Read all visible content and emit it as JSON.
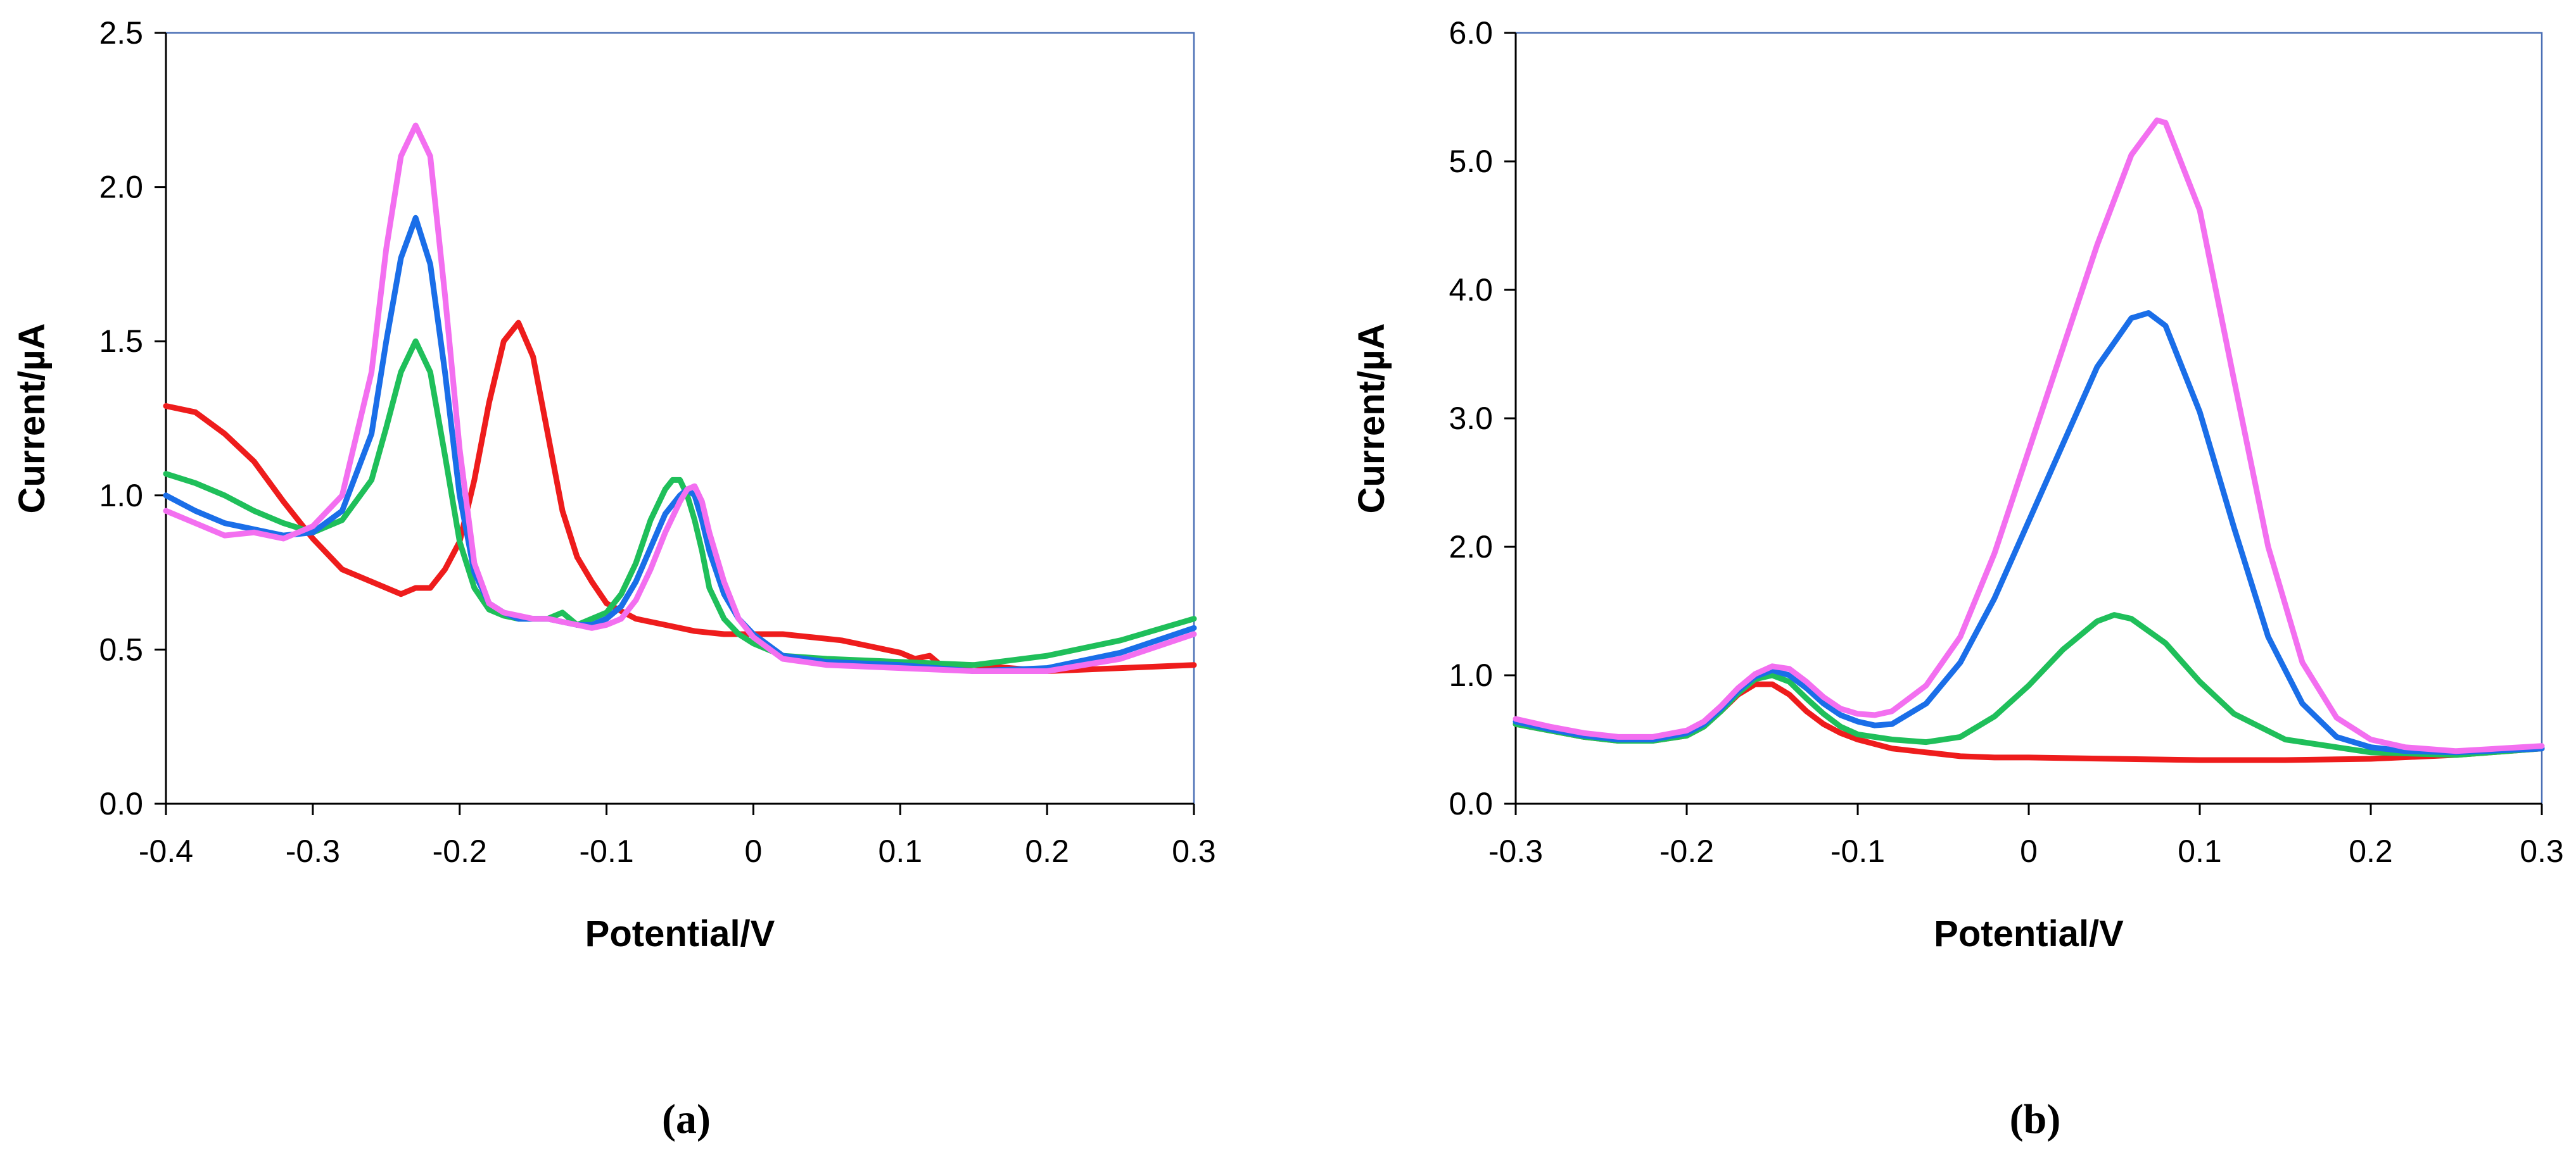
{
  "chart_data": [
    {
      "type": "line",
      "caption": "(a)",
      "xlabel": "Potential/V",
      "ylabel": "Current/µA",
      "xlim": [
        -0.4,
        0.3
      ],
      "ylim": [
        0,
        2.5
      ],
      "xticks": [
        -0.4,
        -0.3,
        -0.2,
        -0.1,
        0,
        0.1,
        0.2,
        0.3
      ],
      "xtick_labels": [
        "-0.4",
        "-0.3",
        "-0.2",
        "-0.1",
        "0",
        "0.1",
        "0.2",
        "0.3"
      ],
      "yticks": [
        0,
        0.5,
        1.0,
        1.5,
        2.0,
        2.5
      ],
      "ytick_labels": [
        "0.0",
        "0.5",
        "1.0",
        "1.5",
        "2.0",
        "2.5"
      ],
      "grid": false,
      "legend": "none",
      "series": [
        {
          "name": "red",
          "color": "#ee1c1c",
          "x": [
            -0.4,
            -0.38,
            -0.36,
            -0.34,
            -0.32,
            -0.3,
            -0.28,
            -0.26,
            -0.24,
            -0.23,
            -0.22,
            -0.21,
            -0.2,
            -0.19,
            -0.18,
            -0.17,
            -0.16,
            -0.15,
            -0.14,
            -0.13,
            -0.12,
            -0.11,
            -0.1,
            -0.08,
            -0.06,
            -0.04,
            -0.02,
            0,
            0.02,
            0.04,
            0.06,
            0.08,
            0.1,
            0.11,
            0.12,
            0.13,
            0.15,
            0.2,
            0.25,
            0.3
          ],
          "y": [
            1.29,
            1.27,
            1.2,
            1.11,
            0.98,
            0.86,
            0.76,
            0.72,
            0.68,
            0.7,
            0.7,
            0.76,
            0.85,
            1.05,
            1.3,
            1.5,
            1.56,
            1.45,
            1.2,
            0.95,
            0.8,
            0.72,
            0.65,
            0.6,
            0.58,
            0.56,
            0.55,
            0.55,
            0.55,
            0.54,
            0.53,
            0.51,
            0.49,
            0.47,
            0.48,
            0.44,
            0.45,
            0.43,
            0.44,
            0.45
          ]
        },
        {
          "name": "green",
          "color": "#1fbf5a",
          "x": [
            -0.4,
            -0.38,
            -0.36,
            -0.34,
            -0.32,
            -0.3,
            -0.28,
            -0.26,
            -0.25,
            -0.24,
            -0.23,
            -0.22,
            -0.21,
            -0.2,
            -0.19,
            -0.18,
            -0.17,
            -0.16,
            -0.15,
            -0.14,
            -0.13,
            -0.12,
            -0.11,
            -0.1,
            -0.09,
            -0.08,
            -0.07,
            -0.06,
            -0.055,
            -0.05,
            -0.045,
            -0.04,
            -0.035,
            -0.03,
            -0.02,
            -0.01,
            0,
            0.02,
            0.05,
            0.1,
            0.15,
            0.2,
            0.25,
            0.3
          ],
          "y": [
            1.07,
            1.04,
            1.0,
            0.95,
            0.91,
            0.88,
            0.92,
            1.05,
            1.22,
            1.4,
            1.5,
            1.4,
            1.13,
            0.85,
            0.7,
            0.63,
            0.61,
            0.6,
            0.6,
            0.6,
            0.62,
            0.58,
            0.6,
            0.62,
            0.68,
            0.78,
            0.92,
            1.02,
            1.05,
            1.05,
            1.0,
            0.92,
            0.82,
            0.7,
            0.6,
            0.55,
            0.52,
            0.48,
            0.47,
            0.46,
            0.45,
            0.48,
            0.53,
            0.6
          ]
        },
        {
          "name": "blue",
          "color": "#1a6ee8",
          "x": [
            -0.4,
            -0.38,
            -0.36,
            -0.34,
            -0.32,
            -0.3,
            -0.28,
            -0.26,
            -0.25,
            -0.24,
            -0.23,
            -0.22,
            -0.21,
            -0.2,
            -0.19,
            -0.18,
            -0.17,
            -0.16,
            -0.15,
            -0.14,
            -0.13,
            -0.12,
            -0.11,
            -0.1,
            -0.09,
            -0.08,
            -0.07,
            -0.06,
            -0.05,
            -0.045,
            -0.04,
            -0.035,
            -0.03,
            -0.02,
            -0.01,
            0,
            0.02,
            0.05,
            0.1,
            0.15,
            0.2,
            0.25,
            0.3
          ],
          "y": [
            1.0,
            0.95,
            0.91,
            0.89,
            0.87,
            0.88,
            0.95,
            1.2,
            1.5,
            1.77,
            1.9,
            1.75,
            1.4,
            1.0,
            0.75,
            0.65,
            0.62,
            0.6,
            0.6,
            0.6,
            0.59,
            0.58,
            0.58,
            0.6,
            0.64,
            0.72,
            0.83,
            0.94,
            1.0,
            1.02,
            1.0,
            0.92,
            0.82,
            0.68,
            0.6,
            0.55,
            0.48,
            0.46,
            0.45,
            0.43,
            0.44,
            0.49,
            0.57
          ]
        },
        {
          "name": "magenta",
          "color": "#f36ff0",
          "x": [
            -0.4,
            -0.38,
            -0.36,
            -0.34,
            -0.32,
            -0.3,
            -0.28,
            -0.26,
            -0.25,
            -0.24,
            -0.23,
            -0.22,
            -0.21,
            -0.2,
            -0.19,
            -0.18,
            -0.17,
            -0.16,
            -0.15,
            -0.14,
            -0.13,
            -0.12,
            -0.11,
            -0.1,
            -0.09,
            -0.08,
            -0.07,
            -0.06,
            -0.05,
            -0.045,
            -0.04,
            -0.035,
            -0.03,
            -0.02,
            -0.01,
            0,
            0.02,
            0.05,
            0.1,
            0.15,
            0.2,
            0.25,
            0.3
          ],
          "y": [
            0.95,
            0.91,
            0.87,
            0.88,
            0.86,
            0.9,
            1.0,
            1.4,
            1.8,
            2.1,
            2.2,
            2.1,
            1.65,
            1.15,
            0.78,
            0.65,
            0.62,
            0.61,
            0.6,
            0.6,
            0.59,
            0.58,
            0.57,
            0.58,
            0.6,
            0.66,
            0.76,
            0.88,
            0.98,
            1.02,
            1.03,
            0.98,
            0.88,
            0.72,
            0.6,
            0.54,
            0.47,
            0.45,
            0.44,
            0.43,
            0.43,
            0.47,
            0.55
          ]
        }
      ]
    },
    {
      "type": "line",
      "caption": "(b)",
      "xlabel": "Potential/V",
      "ylabel": "Current/µA",
      "xlim": [
        -0.3,
        0.3
      ],
      "ylim": [
        0,
        6.0
      ],
      "xticks": [
        -0.3,
        -0.2,
        -0.1,
        0,
        0.1,
        0.2,
        0.3
      ],
      "xtick_labels": [
        "-0.3",
        "-0.2",
        "-0.1",
        "0",
        "0.1",
        "0.2",
        "0.3"
      ],
      "yticks": [
        0,
        1,
        2,
        3,
        4,
        5,
        6
      ],
      "ytick_labels": [
        "0.0",
        "1.0",
        "2.0",
        "3.0",
        "4.0",
        "5.0",
        "6.0"
      ],
      "grid": false,
      "legend": "none",
      "series": [
        {
          "name": "red",
          "color": "#ee1c1c",
          "x": [
            -0.3,
            -0.28,
            -0.26,
            -0.24,
            -0.22,
            -0.2,
            -0.19,
            -0.18,
            -0.17,
            -0.16,
            -0.15,
            -0.14,
            -0.13,
            -0.12,
            -0.11,
            -0.1,
            -0.08,
            -0.06,
            -0.04,
            -0.02,
            0,
            0.05,
            0.1,
            0.15,
            0.2,
            0.25,
            0.3
          ],
          "y": [
            0.62,
            0.57,
            0.52,
            0.49,
            0.49,
            0.53,
            0.6,
            0.72,
            0.85,
            0.93,
            0.93,
            0.85,
            0.72,
            0.62,
            0.55,
            0.5,
            0.43,
            0.4,
            0.37,
            0.36,
            0.36,
            0.35,
            0.34,
            0.34,
            0.35,
            0.38,
            0.43
          ]
        },
        {
          "name": "green",
          "color": "#1fbf5a",
          "x": [
            -0.3,
            -0.28,
            -0.26,
            -0.24,
            -0.22,
            -0.2,
            -0.19,
            -0.18,
            -0.17,
            -0.16,
            -0.15,
            -0.14,
            -0.13,
            -0.12,
            -0.11,
            -0.1,
            -0.08,
            -0.06,
            -0.04,
            -0.02,
            0,
            0.02,
            0.04,
            0.05,
            0.06,
            0.08,
            0.1,
            0.12,
            0.15,
            0.2,
            0.25,
            0.3
          ],
          "y": [
            0.62,
            0.57,
            0.52,
            0.49,
            0.49,
            0.53,
            0.6,
            0.72,
            0.86,
            0.97,
            1.0,
            0.95,
            0.82,
            0.7,
            0.6,
            0.54,
            0.5,
            0.48,
            0.52,
            0.68,
            0.92,
            1.2,
            1.42,
            1.47,
            1.44,
            1.25,
            0.95,
            0.7,
            0.5,
            0.4,
            0.38,
            0.43
          ]
        },
        {
          "name": "blue",
          "color": "#1a6ee8",
          "x": [
            -0.3,
            -0.28,
            -0.26,
            -0.24,
            -0.22,
            -0.2,
            -0.19,
            -0.18,
            -0.17,
            -0.16,
            -0.15,
            -0.14,
            -0.13,
            -0.12,
            -0.11,
            -0.1,
            -0.09,
            -0.08,
            -0.06,
            -0.04,
            -0.02,
            0,
            0.02,
            0.04,
            0.06,
            0.07,
            0.08,
            0.1,
            0.12,
            0.14,
            0.16,
            0.18,
            0.2,
            0.22,
            0.25,
            0.3
          ],
          "y": [
            0.64,
            0.58,
            0.53,
            0.5,
            0.5,
            0.55,
            0.62,
            0.74,
            0.88,
            0.99,
            1.04,
            1.0,
            0.9,
            0.78,
            0.69,
            0.64,
            0.61,
            0.62,
            0.78,
            1.1,
            1.6,
            2.2,
            2.8,
            3.4,
            3.78,
            3.82,
            3.72,
            3.05,
            2.15,
            1.3,
            0.78,
            0.52,
            0.44,
            0.41,
            0.4,
            0.43
          ]
        },
        {
          "name": "magenta",
          "color": "#f36ff0",
          "x": [
            -0.3,
            -0.28,
            -0.26,
            -0.24,
            -0.22,
            -0.2,
            -0.19,
            -0.18,
            -0.17,
            -0.16,
            -0.15,
            -0.14,
            -0.13,
            -0.12,
            -0.11,
            -0.1,
            -0.09,
            -0.08,
            -0.06,
            -0.04,
            -0.02,
            0,
            0.02,
            0.04,
            0.06,
            0.075,
            0.08,
            0.1,
            0.12,
            0.14,
            0.16,
            0.18,
            0.2,
            0.22,
            0.25,
            0.3
          ],
          "y": [
            0.66,
            0.6,
            0.55,
            0.52,
            0.52,
            0.57,
            0.64,
            0.76,
            0.9,
            1.01,
            1.07,
            1.05,
            0.95,
            0.83,
            0.74,
            0.7,
            0.69,
            0.72,
            0.92,
            1.3,
            1.95,
            2.75,
            3.55,
            4.35,
            5.05,
            5.32,
            5.3,
            4.62,
            3.3,
            2.0,
            1.1,
            0.67,
            0.5,
            0.44,
            0.41,
            0.45
          ]
        }
      ]
    }
  ]
}
